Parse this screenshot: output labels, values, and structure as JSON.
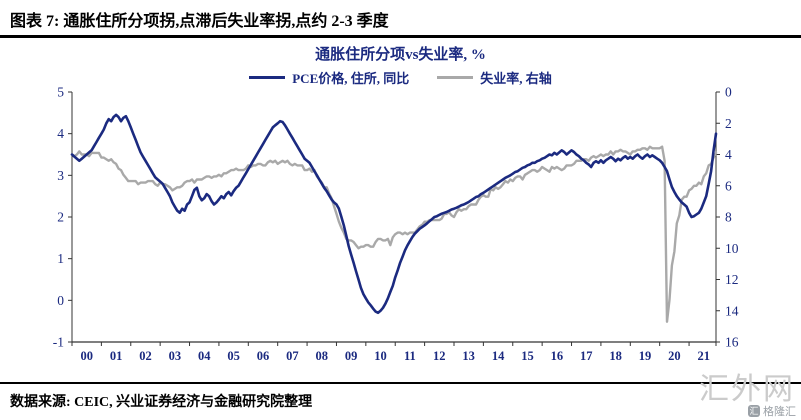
{
  "header": {
    "title": "图表 7: 通胀住所分项拐,点滞后失业率拐,点约 2-3 季度"
  },
  "source": {
    "text": "数据来源: CEIC, 兴业证券经济与金融研究院整理"
  },
  "watermark": {
    "large": "汇外网",
    "small": "格隆汇",
    "icon_glyph": "汇"
  },
  "colors": {
    "navy": "#1b2a80",
    "gray": "#a9a9a9",
    "axis_text": "#1b2a80",
    "watermark": "#cbcbcb"
  },
  "chart_data": {
    "type": "line",
    "title": "通胀住所分项vs失业率, %",
    "frequency": "monthly",
    "x_start_year": 2000,
    "x_tick_labels": [
      "00",
      "01",
      "02",
      "03",
      "04",
      "05",
      "06",
      "07",
      "08",
      "09",
      "10",
      "11",
      "12",
      "13",
      "14",
      "15",
      "16",
      "17",
      "18",
      "19",
      "20",
      "21"
    ],
    "left_axis": {
      "min": -1,
      "max": 5,
      "ticks": [
        5,
        4,
        3,
        2,
        1,
        0,
        -1
      ]
    },
    "right_axis": {
      "min": 0,
      "max": 16,
      "ticks": [
        0,
        2,
        4,
        6,
        8,
        10,
        12,
        14,
        16
      ],
      "inverted": true
    },
    "legend_position": "top-center",
    "grid": false,
    "series": [
      {
        "name": "PCE价格, 住所, 同比",
        "axis": "left",
        "color": "#1b2a80",
        "values": [
          3.5,
          3.45,
          3.4,
          3.35,
          3.4,
          3.45,
          3.5,
          3.55,
          3.6,
          3.7,
          3.8,
          3.9,
          4.0,
          4.1,
          4.25,
          4.35,
          4.3,
          4.4,
          4.45,
          4.4,
          4.3,
          4.38,
          4.42,
          4.3,
          4.15,
          4.0,
          3.85,
          3.7,
          3.55,
          3.45,
          3.35,
          3.25,
          3.15,
          3.05,
          2.95,
          2.9,
          2.85,
          2.8,
          2.7,
          2.6,
          2.5,
          2.35,
          2.25,
          2.15,
          2.1,
          2.2,
          2.15,
          2.3,
          2.35,
          2.5,
          2.65,
          2.7,
          2.5,
          2.4,
          2.45,
          2.55,
          2.5,
          2.38,
          2.3,
          2.35,
          2.42,
          2.5,
          2.45,
          2.55,
          2.6,
          2.52,
          2.62,
          2.7,
          2.75,
          2.85,
          2.95,
          3.05,
          3.15,
          3.25,
          3.35,
          3.45,
          3.55,
          3.65,
          3.75,
          3.85,
          3.95,
          4.05,
          4.15,
          4.2,
          4.25,
          4.3,
          4.28,
          4.2,
          4.1,
          4.0,
          3.9,
          3.8,
          3.7,
          3.6,
          3.5,
          3.4,
          3.35,
          3.3,
          3.2,
          3.1,
          3.0,
          2.9,
          2.8,
          2.7,
          2.62,
          2.52,
          2.42,
          2.35,
          2.3,
          2.2,
          2.0,
          1.8,
          1.55,
          1.3,
          1.1,
          0.9,
          0.7,
          0.5,
          0.3,
          0.15,
          0.05,
          -0.05,
          -0.12,
          -0.2,
          -0.27,
          -0.3,
          -0.25,
          -0.18,
          -0.08,
          0.05,
          0.2,
          0.35,
          0.55,
          0.72,
          0.9,
          1.05,
          1.2,
          1.32,
          1.42,
          1.52,
          1.6,
          1.66,
          1.72,
          1.76,
          1.8,
          1.85,
          1.9,
          1.95,
          2.0,
          2.02,
          2.05,
          2.08,
          2.1,
          2.12,
          2.15,
          2.18,
          2.2,
          2.22,
          2.25,
          2.28,
          2.3,
          2.33,
          2.36,
          2.4,
          2.44,
          2.48,
          2.5,
          2.55,
          2.58,
          2.62,
          2.66,
          2.7,
          2.74,
          2.78,
          2.82,
          2.86,
          2.9,
          2.94,
          2.97,
          3.0,
          3.04,
          3.08,
          3.1,
          3.14,
          3.18,
          3.2,
          3.24,
          3.26,
          3.3,
          3.3,
          3.34,
          3.36,
          3.4,
          3.42,
          3.46,
          3.5,
          3.48,
          3.54,
          3.5,
          3.55,
          3.6,
          3.56,
          3.5,
          3.55,
          3.6,
          3.56,
          3.5,
          3.46,
          3.4,
          3.36,
          3.3,
          3.26,
          3.2,
          3.3,
          3.34,
          3.3,
          3.36,
          3.3,
          3.36,
          3.4,
          3.44,
          3.4,
          3.34,
          3.4,
          3.36,
          3.42,
          3.46,
          3.4,
          3.44,
          3.4,
          3.46,
          3.5,
          3.44,
          3.4,
          3.46,
          3.5,
          3.44,
          3.48,
          3.44,
          3.4,
          3.36,
          3.3,
          3.2,
          3.1,
          2.9,
          2.72,
          2.6,
          2.5,
          2.42,
          2.35,
          2.3,
          2.25,
          2.1,
          2.0,
          2.02,
          2.06,
          2.1,
          2.2,
          2.35,
          2.5,
          2.8,
          3.1,
          3.6,
          4.0
        ]
      },
      {
        "name": "失业率, 右轴",
        "axis": "right",
        "color": "#a9a9a9",
        "values": [
          4.0,
          4.1,
          4.0,
          3.8,
          4.0,
          4.0,
          4.0,
          4.1,
          3.9,
          3.9,
          3.9,
          3.9,
          4.2,
          4.2,
          4.3,
          4.4,
          4.3,
          4.5,
          4.6,
          4.9,
          5.0,
          5.3,
          5.5,
          5.7,
          5.7,
          5.7,
          5.7,
          5.9,
          5.8,
          5.8,
          5.8,
          5.7,
          5.7,
          5.7,
          5.9,
          6.0,
          5.8,
          5.9,
          5.9,
          6.0,
          6.1,
          6.3,
          6.2,
          6.1,
          6.1,
          6.0,
          5.8,
          5.7,
          5.7,
          5.6,
          5.8,
          5.6,
          5.6,
          5.6,
          5.5,
          5.4,
          5.4,
          5.5,
          5.4,
          5.4,
          5.3,
          5.4,
          5.2,
          5.2,
          5.1,
          5.0,
          5.0,
          4.9,
          5.0,
          5.0,
          5.0,
          4.9,
          4.7,
          4.8,
          4.7,
          4.7,
          4.6,
          4.6,
          4.7,
          4.7,
          4.5,
          4.4,
          4.5,
          4.4,
          4.6,
          4.5,
          4.4,
          4.5,
          4.4,
          4.6,
          4.7,
          4.6,
          4.7,
          4.7,
          4.7,
          5.0,
          5.0,
          4.9,
          5.1,
          5.0,
          5.4,
          5.6,
          5.8,
          6.1,
          6.1,
          6.5,
          6.8,
          7.3,
          7.8,
          8.3,
          8.7,
          9.0,
          9.4,
          9.5,
          9.5,
          9.6,
          9.8,
          10.0,
          9.9,
          9.9,
          9.8,
          9.8,
          9.9,
          9.9,
          9.6,
          9.4,
          9.4,
          9.5,
          9.5,
          9.4,
          9.8,
          9.3,
          9.1,
          9.0,
          9.0,
          9.1,
          9.0,
          9.1,
          9.0,
          9.0,
          9.0,
          8.8,
          8.6,
          8.5,
          8.3,
          8.3,
          8.2,
          8.2,
          8.2,
          8.2,
          8.2,
          8.1,
          7.8,
          7.8,
          7.7,
          7.9,
          8.0,
          7.7,
          7.5,
          7.6,
          7.5,
          7.5,
          7.3,
          7.2,
          7.2,
          7.2,
          6.9,
          6.7,
          6.6,
          6.7,
          6.7,
          6.2,
          6.3,
          6.1,
          6.2,
          6.1,
          5.9,
          5.7,
          5.8,
          5.6,
          5.7,
          5.5,
          5.4,
          5.4,
          5.6,
          5.3,
          5.2,
          5.1,
          5.0,
          5.0,
          5.1,
          5.0,
          4.8,
          4.9,
          5.0,
          5.1,
          4.8,
          4.9,
          4.8,
          4.9,
          5.0,
          4.9,
          4.7,
          4.7,
          4.7,
          4.6,
          4.4,
          4.4,
          4.4,
          4.3,
          4.3,
          4.4,
          4.2,
          4.1,
          4.2,
          4.1,
          4.0,
          4.1,
          4.0,
          4.0,
          3.8,
          4.0,
          3.8,
          3.8,
          3.7,
          3.8,
          3.8,
          3.9,
          4.0,
          3.8,
          3.8,
          3.7,
          3.7,
          3.6,
          3.6,
          3.7,
          3.5,
          3.6,
          3.6,
          3.6,
          3.6,
          3.5,
          4.4,
          14.7,
          13.3,
          11.1,
          10.2,
          8.4,
          7.9,
          6.9,
          6.7,
          6.7,
          6.3,
          6.2,
          6.0,
          6.0,
          5.8,
          5.9,
          5.4,
          5.2,
          4.7,
          4.6,
          4.2,
          3.9
        ]
      }
    ]
  }
}
